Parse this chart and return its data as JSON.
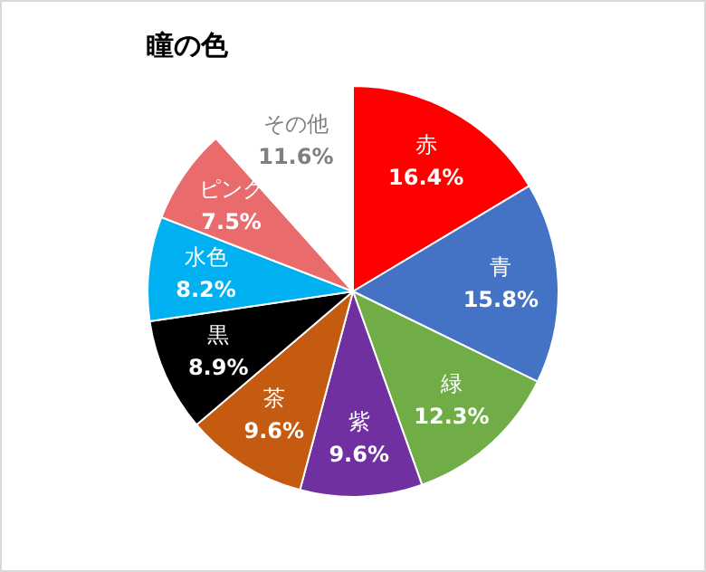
{
  "chart_data": {
    "type": "pie",
    "title": "瞳の色",
    "categories": [
      "赤",
      "青",
      "緑",
      "紫",
      "茶",
      "黒",
      "水色",
      "ピンク",
      "その他"
    ],
    "values": [
      16.4,
      15.8,
      12.3,
      9.6,
      9.6,
      8.9,
      8.2,
      7.5,
      11.6
    ],
    "value_labels": [
      "16.4%",
      "15.8%",
      "12.3%",
      "9.6%",
      "9.6%",
      "8.9%",
      "8.2%",
      "7.5%",
      "11.6%"
    ],
    "colors": [
      "#ff0000",
      "#4472c4",
      "#70ad47",
      "#7030a0",
      "#c55a11",
      "#000000",
      "#00b0f0",
      "#e96b6b",
      "#ffffff"
    ],
    "legend": false
  }
}
